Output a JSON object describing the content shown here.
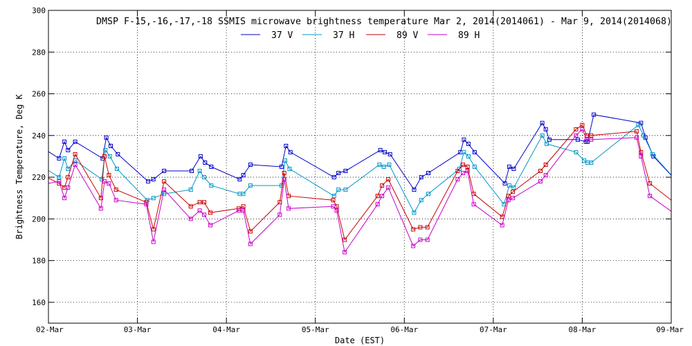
{
  "chart_data": {
    "type": "line",
    "title": "DMSP F-15,-16,-17,-18 SSMIS microwave brightness temperature Mar  2, 2014(2014061) - Mar  9, 2014(2014068)",
    "xlabel": "Date (EST)",
    "ylabel": "Brightness Temperature, Deg K",
    "xlim": [
      0,
      7
    ],
    "ylim": [
      150,
      300
    ],
    "yticks": [
      160,
      180,
      200,
      220,
      240,
      260,
      280,
      300
    ],
    "xticks": [
      0,
      1,
      2,
      3,
      4,
      5,
      6,
      7
    ],
    "xtick_labels": [
      "02-Mar",
      "03-Mar",
      "04-Mar",
      "05-Mar",
      "06-Mar",
      "07-Mar",
      "08-Mar",
      "09-Mar"
    ],
    "grid": true,
    "legend_position": "top",
    "series": [
      {
        "name": "37 V",
        "color": "#0000c8",
        "x": [
          -0.25,
          0.12,
          0.18,
          0.22,
          0.3,
          0.61,
          0.65,
          0.7,
          0.78,
          1.12,
          1.18,
          1.3,
          1.61,
          1.71,
          1.76,
          1.83,
          2.15,
          2.19,
          2.27,
          2.62,
          2.67,
          2.72,
          3.21,
          3.26,
          3.34,
          3.73,
          3.78,
          3.84,
          4.11,
          4.19,
          4.27,
          4.63,
          4.67,
          4.72,
          4.79,
          5.13,
          5.18,
          5.23,
          5.55,
          5.59,
          5.63,
          5.95,
          6.04,
          6.06,
          6.13,
          6.66,
          6.71,
          6.8,
          7.15
        ],
        "values": [
          239,
          229,
          237,
          233,
          237,
          229,
          239,
          235,
          231,
          218,
          219,
          223,
          223,
          230,
          227,
          225,
          219,
          221,
          226,
          225,
          235,
          232,
          220,
          222,
          223,
          233,
          232,
          231,
          214,
          220,
          222,
          232,
          238,
          236,
          232,
          217,
          225,
          224,
          246,
          243,
          238,
          238,
          237,
          237,
          250,
          246,
          239,
          230,
          214
        ]
      },
      {
        "name": "37 H",
        "color": "#0096c8",
        "x": [
          -0.25,
          0.12,
          0.18,
          0.22,
          0.3,
          0.6,
          0.64,
          0.69,
          0.77,
          1.11,
          1.18,
          1.3,
          1.6,
          1.7,
          1.75,
          1.83,
          2.15,
          2.19,
          2.27,
          2.62,
          2.66,
          2.71,
          3.21,
          3.26,
          3.34,
          3.72,
          3.77,
          3.83,
          4.11,
          4.19,
          4.27,
          4.62,
          4.67,
          4.72,
          4.79,
          5.12,
          5.18,
          5.23,
          5.55,
          5.6,
          5.93,
          6.02,
          6.06,
          6.1,
          6.63,
          6.69,
          6.79,
          7.15
        ],
        "values": [
          230,
          220,
          229,
          224,
          228,
          219,
          233,
          230,
          224,
          209,
          210,
          212,
          214,
          223,
          220,
          216,
          212,
          212,
          216,
          216,
          228,
          224,
          211,
          214,
          214,
          226,
          225,
          226,
          203,
          209,
          212,
          224,
          232,
          230,
          225,
          207,
          216,
          215,
          240,
          236,
          232,
          228,
          227,
          227,
          245,
          240,
          231,
          214
        ]
      },
      {
        "name": "89 V",
        "color": "#c80000",
        "x": [
          -0.25,
          0.12,
          0.18,
          0.22,
          0.3,
          0.59,
          0.63,
          0.68,
          0.76,
          1.1,
          1.18,
          1.3,
          1.6,
          1.7,
          1.75,
          1.82,
          2.14,
          2.19,
          2.27,
          2.6,
          2.65,
          2.7,
          3.2,
          3.24,
          3.33,
          3.7,
          3.75,
          3.82,
          4.1,
          4.18,
          4.26,
          4.6,
          4.66,
          4.71,
          4.78,
          5.1,
          5.17,
          5.22,
          5.53,
          5.59,
          5.93,
          6.0,
          6.05,
          6.1,
          6.61,
          6.66,
          6.76,
          7.15
        ],
        "values": [
          225,
          217,
          215,
          220,
          231,
          210,
          230,
          221,
          214,
          208,
          195,
          218,
          206,
          208,
          208,
          203,
          205,
          206,
          194,
          208,
          222,
          211,
          209,
          206,
          190,
          211,
          216,
          219,
          195,
          196,
          196,
          223,
          226,
          225,
          212,
          201,
          211,
          213,
          223,
          226,
          243,
          245,
          240,
          240,
          242,
          232,
          217,
          204
        ]
      },
      {
        "name": "89 H",
        "color": "#c800c8",
        "x": [
          -0.25,
          0.12,
          0.18,
          0.22,
          0.3,
          0.59,
          0.63,
          0.68,
          0.76,
          1.1,
          1.18,
          1.3,
          1.6,
          1.7,
          1.75,
          1.82,
          2.14,
          2.19,
          2.27,
          2.6,
          2.65,
          2.7,
          3.2,
          3.24,
          3.33,
          3.7,
          3.75,
          3.82,
          4.1,
          4.18,
          4.26,
          4.6,
          4.66,
          4.71,
          4.78,
          5.1,
          5.17,
          5.22,
          5.53,
          5.59,
          5.93,
          6.0,
          6.05,
          6.1,
          6.61,
          6.66,
          6.76,
          7.15
        ],
        "values": [
          215,
          218,
          210,
          215,
          226,
          205,
          218,
          217,
          209,
          207,
          189,
          214,
          200,
          204,
          202,
          197,
          204,
          204,
          188,
          202,
          219,
          205,
          206,
          204,
          184,
          207,
          211,
          215,
          187,
          190,
          190,
          219,
          222,
          223,
          207,
          197,
          209,
          210,
          218,
          221,
          240,
          243,
          238,
          238,
          239,
          230,
          211,
          199
        ]
      }
    ]
  }
}
